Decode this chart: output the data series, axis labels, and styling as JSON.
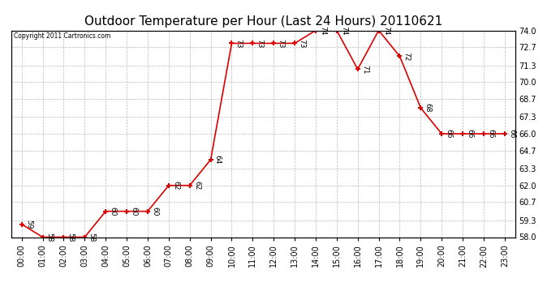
{
  "title": "Outdoor Temperature per Hour (Last 24 Hours) 20110621",
  "copyright": "Copyright 2011 Cartronics.com",
  "hours": [
    "00:00",
    "01:00",
    "02:00",
    "03:00",
    "04:00",
    "05:00",
    "06:00",
    "07:00",
    "08:00",
    "09:00",
    "10:00",
    "11:00",
    "12:00",
    "13:00",
    "14:00",
    "15:00",
    "16:00",
    "17:00",
    "18:00",
    "19:00",
    "20:00",
    "21:00",
    "22:00",
    "23:00"
  ],
  "temperatures": [
    59,
    58,
    58,
    58,
    60,
    60,
    60,
    62,
    62,
    64,
    73,
    73,
    73,
    73,
    74,
    74,
    71,
    74,
    72,
    68,
    66,
    66,
    66,
    66
  ],
  "line_color": "#dd0000",
  "marker_color": "#dd0000",
  "ylim_min": 58.0,
  "ylim_max": 74.0,
  "yticks": [
    58.0,
    59.3,
    60.7,
    62.0,
    63.3,
    64.7,
    66.0,
    67.3,
    68.7,
    70.0,
    71.3,
    72.7,
    74.0
  ],
  "grid_color": "#bbbbbb",
  "bg_color": "#ffffff",
  "title_fontsize": 11,
  "label_fontsize": 7,
  "annot_fontsize": 6.5
}
